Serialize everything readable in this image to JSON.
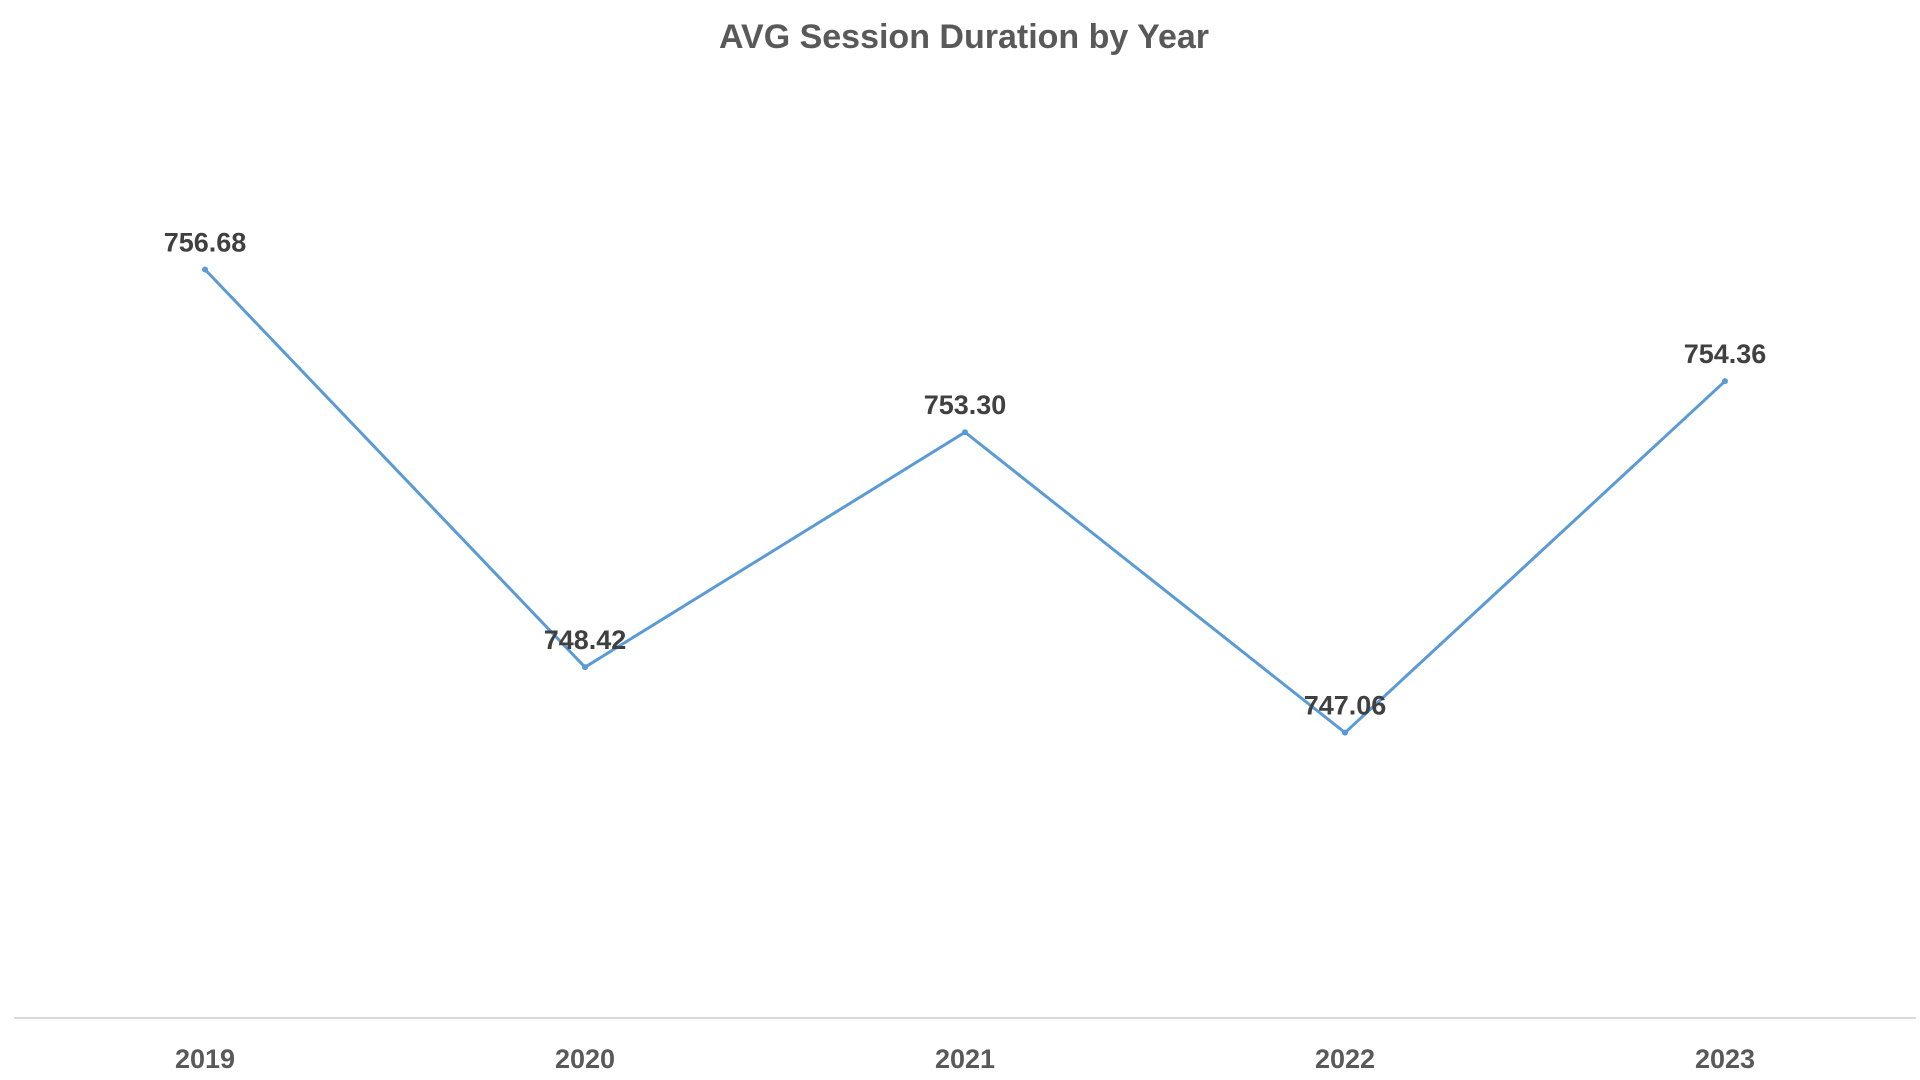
{
  "chart_data": {
    "type": "line",
    "title": "AVG Session Duration by Year",
    "xlabel": "",
    "ylabel": "",
    "categories": [
      "2019",
      "2020",
      "2021",
      "2022",
      "2023"
    ],
    "series": [
      {
        "values": [
          756.68,
          748.42,
          753.3,
          747.06,
          754.36
        ],
        "labels": [
          "756.68",
          "748.42",
          "753.30",
          "747.06",
          "754.36"
        ]
      }
    ],
    "ylim": [
      744.0,
      757.5
    ],
    "grid": false,
    "legend": "none",
    "data_labels": "above",
    "colors": {
      "line": "#5b9bd5",
      "axis": "#d9d9d9",
      "title": "#595959",
      "label": "#404040"
    }
  }
}
